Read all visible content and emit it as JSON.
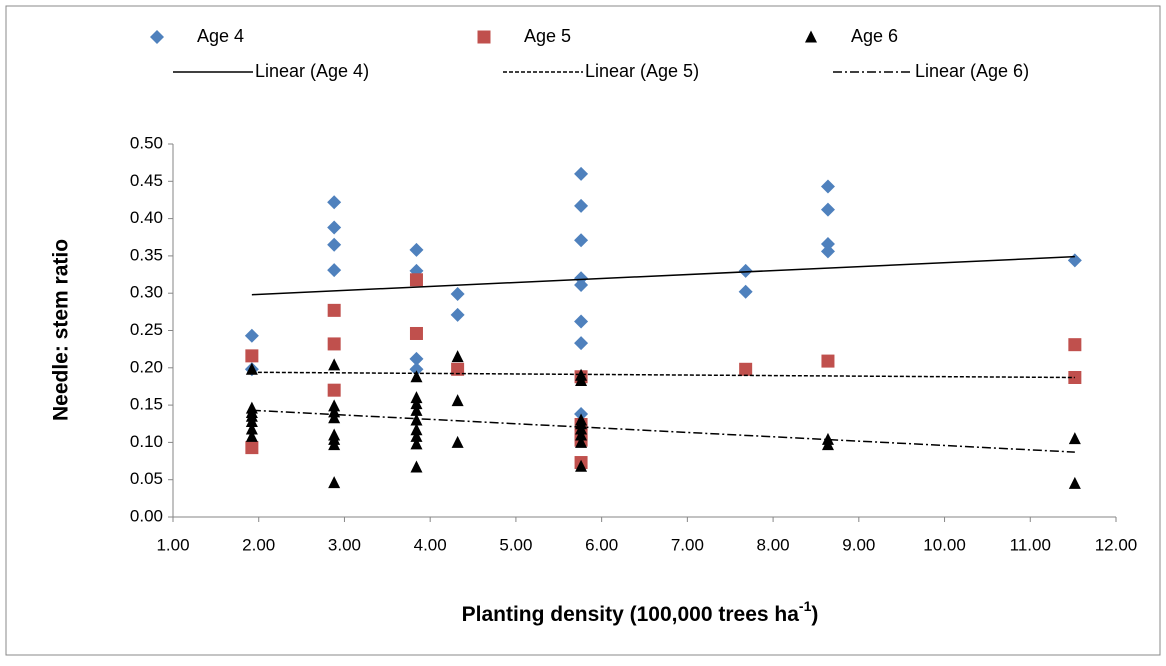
{
  "chart_data": {
    "type": "scatter",
    "ylabel": "Needle: stem ratio",
    "xlabel": [
      "Planting density (100,000 trees ha",
      "-1",
      ")"
    ],
    "xlim": [
      1,
      12
    ],
    "ylim": [
      0,
      0.5
    ],
    "xticks": [
      {
        "value": 1,
        "label": "1.00"
      },
      {
        "value": 2,
        "label": "2.00"
      },
      {
        "value": 3,
        "label": "3.00"
      },
      {
        "value": 4,
        "label": "4.00"
      },
      {
        "value": 5,
        "label": "5.00"
      },
      {
        "value": 6,
        "label": "6.00"
      },
      {
        "value": 7,
        "label": "7.00"
      },
      {
        "value": 8,
        "label": "8.00"
      },
      {
        "value": 9,
        "label": "9.00"
      },
      {
        "value": 10,
        "label": "10.00"
      },
      {
        "value": 11,
        "label": "11.00"
      },
      {
        "value": 12,
        "label": "12.00"
      }
    ],
    "yticks": [
      {
        "value": 0,
        "label": "0.00"
      },
      {
        "value": 0.05,
        "label": "0.05"
      },
      {
        "value": 0.1,
        "label": "0.10"
      },
      {
        "value": 0.15,
        "label": "0.15"
      },
      {
        "value": 0.2,
        "label": "0.20"
      },
      {
        "value": 0.25,
        "label": "0.25"
      },
      {
        "value": 0.3,
        "label": "0.30"
      },
      {
        "value": 0.35,
        "label": "0.35"
      },
      {
        "value": 0.4,
        "label": "0.40"
      },
      {
        "value": 0.45,
        "label": "0.45"
      },
      {
        "value": 0.5,
        "label": "0.50"
      }
    ],
    "legend": "top",
    "series": [
      {
        "name": "Age 4",
        "color": "#4f81bd",
        "marker": "diamond",
        "x": [
          1.92,
          1.92,
          2.88,
          2.88,
          2.88,
          2.88,
          3.84,
          3.84,
          3.84,
          3.84,
          4.32,
          4.32,
          5.76,
          5.76,
          5.76,
          5.76,
          5.76,
          5.76,
          5.76,
          5.76,
          7.68,
          7.68,
          8.64,
          8.64,
          8.64,
          8.64,
          11.52
        ],
        "values": [
          0.243,
          0.198,
          0.422,
          0.388,
          0.365,
          0.331,
          0.358,
          0.33,
          0.212,
          0.198,
          0.299,
          0.271,
          0.46,
          0.417,
          0.371,
          0.32,
          0.311,
          0.262,
          0.233,
          0.138,
          0.33,
          0.302,
          0.443,
          0.412,
          0.366,
          0.356,
          0.344
        ]
      },
      {
        "name": "Age 5",
        "color": "#c0504d",
        "marker": "square",
        "x": [
          1.92,
          1.92,
          2.88,
          2.88,
          2.88,
          3.84,
          3.84,
          4.32,
          5.76,
          5.76,
          5.76,
          5.76,
          5.76,
          7.68,
          8.64,
          11.52,
          11.52
        ],
        "values": [
          0.216,
          0.093,
          0.277,
          0.232,
          0.17,
          0.318,
          0.246,
          0.198,
          0.188,
          0.124,
          0.11,
          0.103,
          0.073,
          0.198,
          0.209,
          0.231,
          0.187
        ]
      },
      {
        "name": "Age 6",
        "color": "#000000",
        "marker": "triangle",
        "x": [
          1.92,
          1.92,
          1.92,
          1.92,
          1.92,
          1.92,
          1.92,
          2.88,
          2.88,
          2.88,
          2.88,
          2.88,
          2.88,
          2.88,
          2.88,
          3.84,
          3.84,
          3.84,
          3.84,
          3.84,
          3.84,
          3.84,
          3.84,
          3.84,
          4.32,
          4.32,
          4.32,
          5.76,
          5.76,
          5.76,
          5.76,
          5.76,
          5.76,
          5.76,
          5.76,
          8.64,
          8.64,
          11.52,
          11.52
        ],
        "values": [
          0.198,
          0.146,
          0.14,
          0.135,
          0.128,
          0.118,
          0.108,
          0.204,
          0.149,
          0.141,
          0.133,
          0.11,
          0.104,
          0.097,
          0.046,
          0.188,
          0.16,
          0.152,
          0.143,
          0.13,
          0.117,
          0.108,
          0.098,
          0.067,
          0.215,
          0.156,
          0.1,
          0.19,
          0.183,
          0.13,
          0.125,
          0.118,
          0.11,
          0.1,
          0.068,
          0.104,
          0.097,
          0.105,
          0.045
        ]
      },
      {
        "name": "Linear (Age 4)",
        "color": "#000000",
        "line_style": "solid",
        "x": [
          1.92,
          11.52
        ],
        "values": [
          0.298,
          0.349
        ]
      },
      {
        "name": "Linear (Age 5)",
        "color": "#000000",
        "line_style": "dashed",
        "x": [
          1.92,
          11.52
        ],
        "values": [
          0.194,
          0.187
        ]
      },
      {
        "name": "Linear (Age 6)",
        "color": "#000000",
        "line_style": "dash-dot",
        "x": [
          1.92,
          11.52
        ],
        "values": [
          0.143,
          0.087
        ]
      }
    ]
  }
}
